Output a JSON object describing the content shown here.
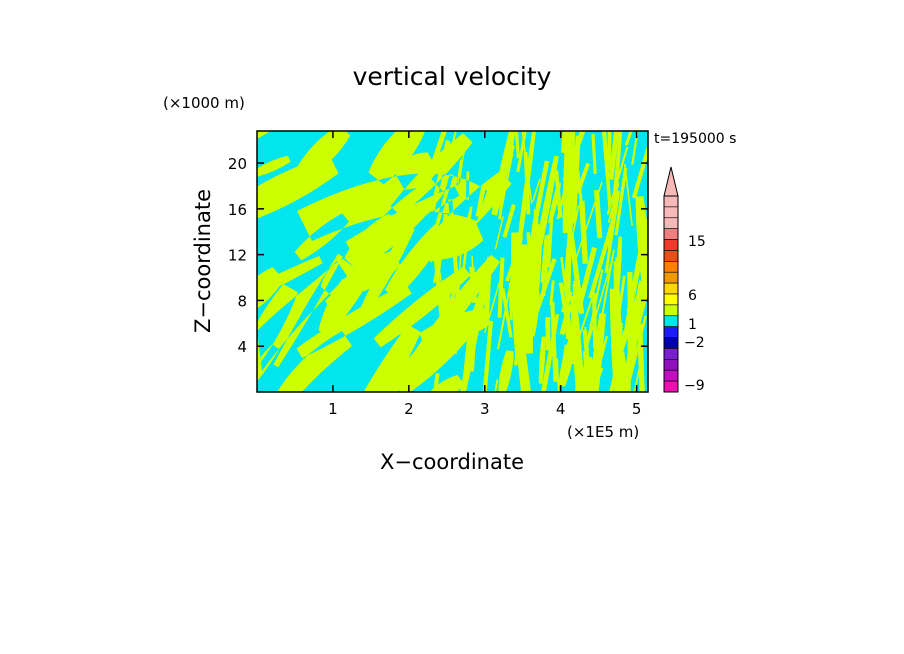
{
  "chart_data": {
    "type": "heatmap",
    "title": "vertical velocity",
    "xlabel": "X−coordinate",
    "ylabel": "Z−coordinate",
    "x_unit": "(×1E5 m)",
    "y_unit": "(×1000 m)",
    "time_label": "t=195000 s",
    "xlim": [
      0,
      5.15
    ],
    "ylim": [
      0,
      22.8
    ],
    "x_ticks": [
      1,
      2,
      3,
      4,
      5
    ],
    "x_tick_labels": [
      "1",
      "2",
      "3",
      "4",
      "5"
    ],
    "y_ticks": [
      4,
      8,
      12,
      16,
      20
    ],
    "y_tick_labels": [
      "4",
      "8",
      "12",
      "16",
      "20"
    ],
    "field": {
      "description_colors": [
        "#00e5ee",
        "#ccff00"
      ],
      "dominant_levels": [
        "slightly negative",
        "slightly positive"
      ]
    },
    "colorbar": {
      "label_values": [
        "15",
        "6",
        "1",
        "−2",
        "−9"
      ],
      "segments": [
        {
          "color": "#f7b8b8"
        },
        {
          "color": "#f7b8b8"
        },
        {
          "color": "#f7b8b8"
        },
        {
          "color": "#f08080"
        },
        {
          "color": "#f03a2a"
        },
        {
          "color": "#e8501a"
        },
        {
          "color": "#ff7f00"
        },
        {
          "color": "#ee9a00"
        },
        {
          "color": "#ffd700"
        },
        {
          "color": "#ffff00"
        },
        {
          "color": "#ccff00"
        },
        {
          "color": "#00e5ee"
        },
        {
          "color": "#1c1cff"
        },
        {
          "color": "#0000aa"
        },
        {
          "color": "#7a1fd0"
        },
        {
          "color": "#9010c0"
        },
        {
          "color": "#c010c0"
        },
        {
          "color": "#ee10b0"
        }
      ],
      "extend_arrow_color": "#f7b8b8"
    }
  }
}
